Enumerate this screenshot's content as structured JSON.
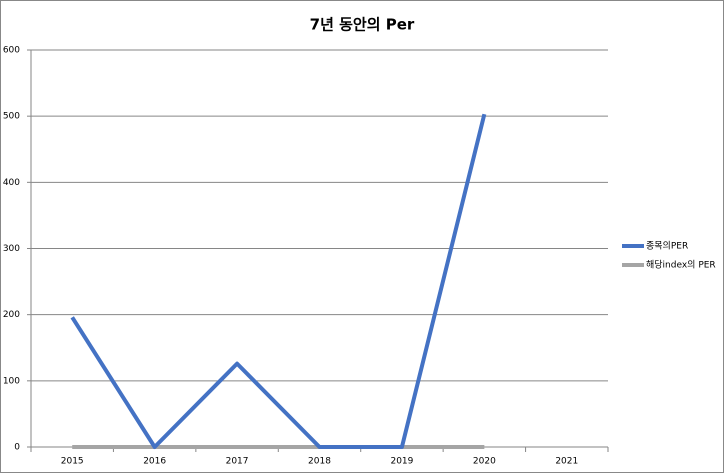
{
  "chart_data": {
    "type": "line",
    "title": "7년 동안의 Per",
    "categories": [
      "2015",
      "2016",
      "2017",
      "2018",
      "2019",
      "2020",
      "2021"
    ],
    "series": [
      {
        "name": "종목의PER",
        "color": "#4472c4",
        "values": [
          196,
          0,
          126,
          0,
          0,
          503,
          null
        ]
      },
      {
        "name": "해당index의 PER",
        "color": "#a5a5a5",
        "values": [
          0,
          0,
          0,
          0,
          0,
          0,
          null
        ]
      }
    ],
    "ylim": [
      0,
      600
    ],
    "yticks": [
      0,
      100,
      200,
      300,
      400,
      500,
      600
    ],
    "grid": true,
    "legend": "right"
  }
}
